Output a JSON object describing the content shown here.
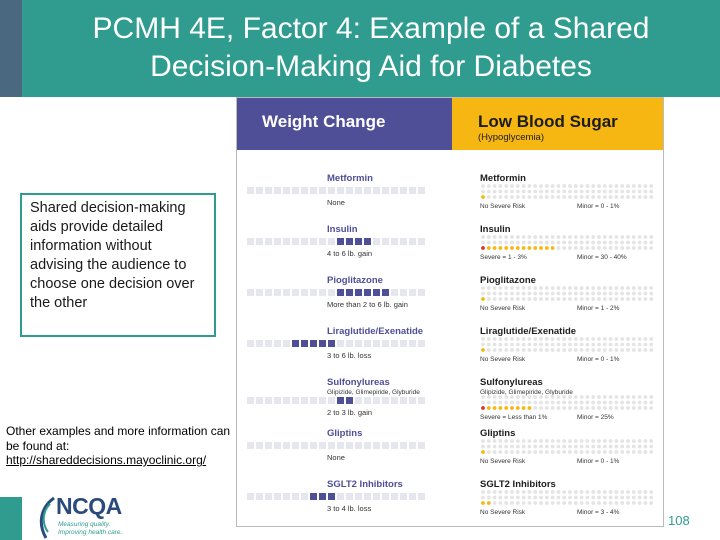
{
  "header": {
    "title_line1": "PCMH 4E, Factor 4: Example of a Shared",
    "title_line2": "Decision-Making Aid for Diabetes"
  },
  "callout": {
    "text": "Shared decision-making aids provide detailed information without advising the audience to choose one decision over the other"
  },
  "other_examples": {
    "text": "Other examples and more information can be found at:",
    "link": "http://shareddecisions.mayoclinic.org/"
  },
  "logo": {
    "name": "NCQA",
    "tagline1": "Measuring quality.",
    "tagline2": "Improving health care."
  },
  "page_number": "108",
  "aid": {
    "weight_header": "Weight Change",
    "sugar_header": "Low Blood Sugar",
    "sugar_subheader": "(Hypoglycemia)",
    "weight_rows": [
      {
        "drug": "Metformin",
        "sub": "",
        "effect": "None",
        "dir": "none",
        "n": 0
      },
      {
        "drug": "Insulin",
        "sub": "",
        "effect": "4 to 6 lb. gain",
        "dir": "gain",
        "n": 4
      },
      {
        "drug": "Pioglitazone",
        "sub": "",
        "effect": "More than 2 to 6 lb. gain",
        "dir": "gain",
        "n": 6
      },
      {
        "drug": "Liraglutide/Exenatide",
        "sub": "",
        "effect": "3 to 6 lb. loss",
        "dir": "loss",
        "n": 5
      },
      {
        "drug": "Sulfonylureas",
        "sub": "Glipizide, Glimepiride, Glyburide",
        "effect": "2 to 3 lb. gain",
        "dir": "gain",
        "n": 2
      },
      {
        "drug": "Gliptins",
        "sub": "",
        "effect": "None",
        "dir": "none",
        "n": 0
      },
      {
        "drug": "SGLT2 Inhibitors",
        "sub": "",
        "effect": "3 to 4 lb. loss",
        "dir": "loss",
        "n": 3
      }
    ],
    "sugar_rows": [
      {
        "drug": "Metformin",
        "sub": "",
        "left": "No Severe Risk",
        "right": "Minor = 0 - 1%",
        "red": 0,
        "yellow": 1
      },
      {
        "drug": "Insulin",
        "sub": "",
        "left": "Severe = 1 - 3%",
        "right": "Minor = 30 - 40%",
        "red": 1,
        "yellow": 12
      },
      {
        "drug": "Pioglitazone",
        "sub": "",
        "left": "No Severe Risk",
        "right": "Minor = 1 - 2%",
        "red": 0,
        "yellow": 1
      },
      {
        "drug": "Liraglutide/Exenatide",
        "sub": "",
        "left": "No Severe Risk",
        "right": "Minor = 0 - 1%",
        "red": 0,
        "yellow": 1
      },
      {
        "drug": "Sulfonylureas",
        "sub": "Glipizide, Glimepiride, Glyburide",
        "left": "Severe = Less than 1%",
        "right": "Minor = 25%",
        "red": 1,
        "yellow": 8
      },
      {
        "drug": "Gliptins",
        "sub": "",
        "left": "No Severe Risk",
        "right": "Minor = 0 - 1%",
        "red": 0,
        "yellow": 1
      },
      {
        "drug": "SGLT2 Inhibitors",
        "sub": "",
        "left": "No Severe Risk",
        "right": "Minor = 3 - 4%",
        "red": 0,
        "yellow": 2
      }
    ]
  },
  "colors": {
    "teal": "#2f9c8f",
    "slate": "#4a6880",
    "purple": "#4e4f97",
    "yellow": "#f7b713",
    "red": "#d8322a"
  }
}
